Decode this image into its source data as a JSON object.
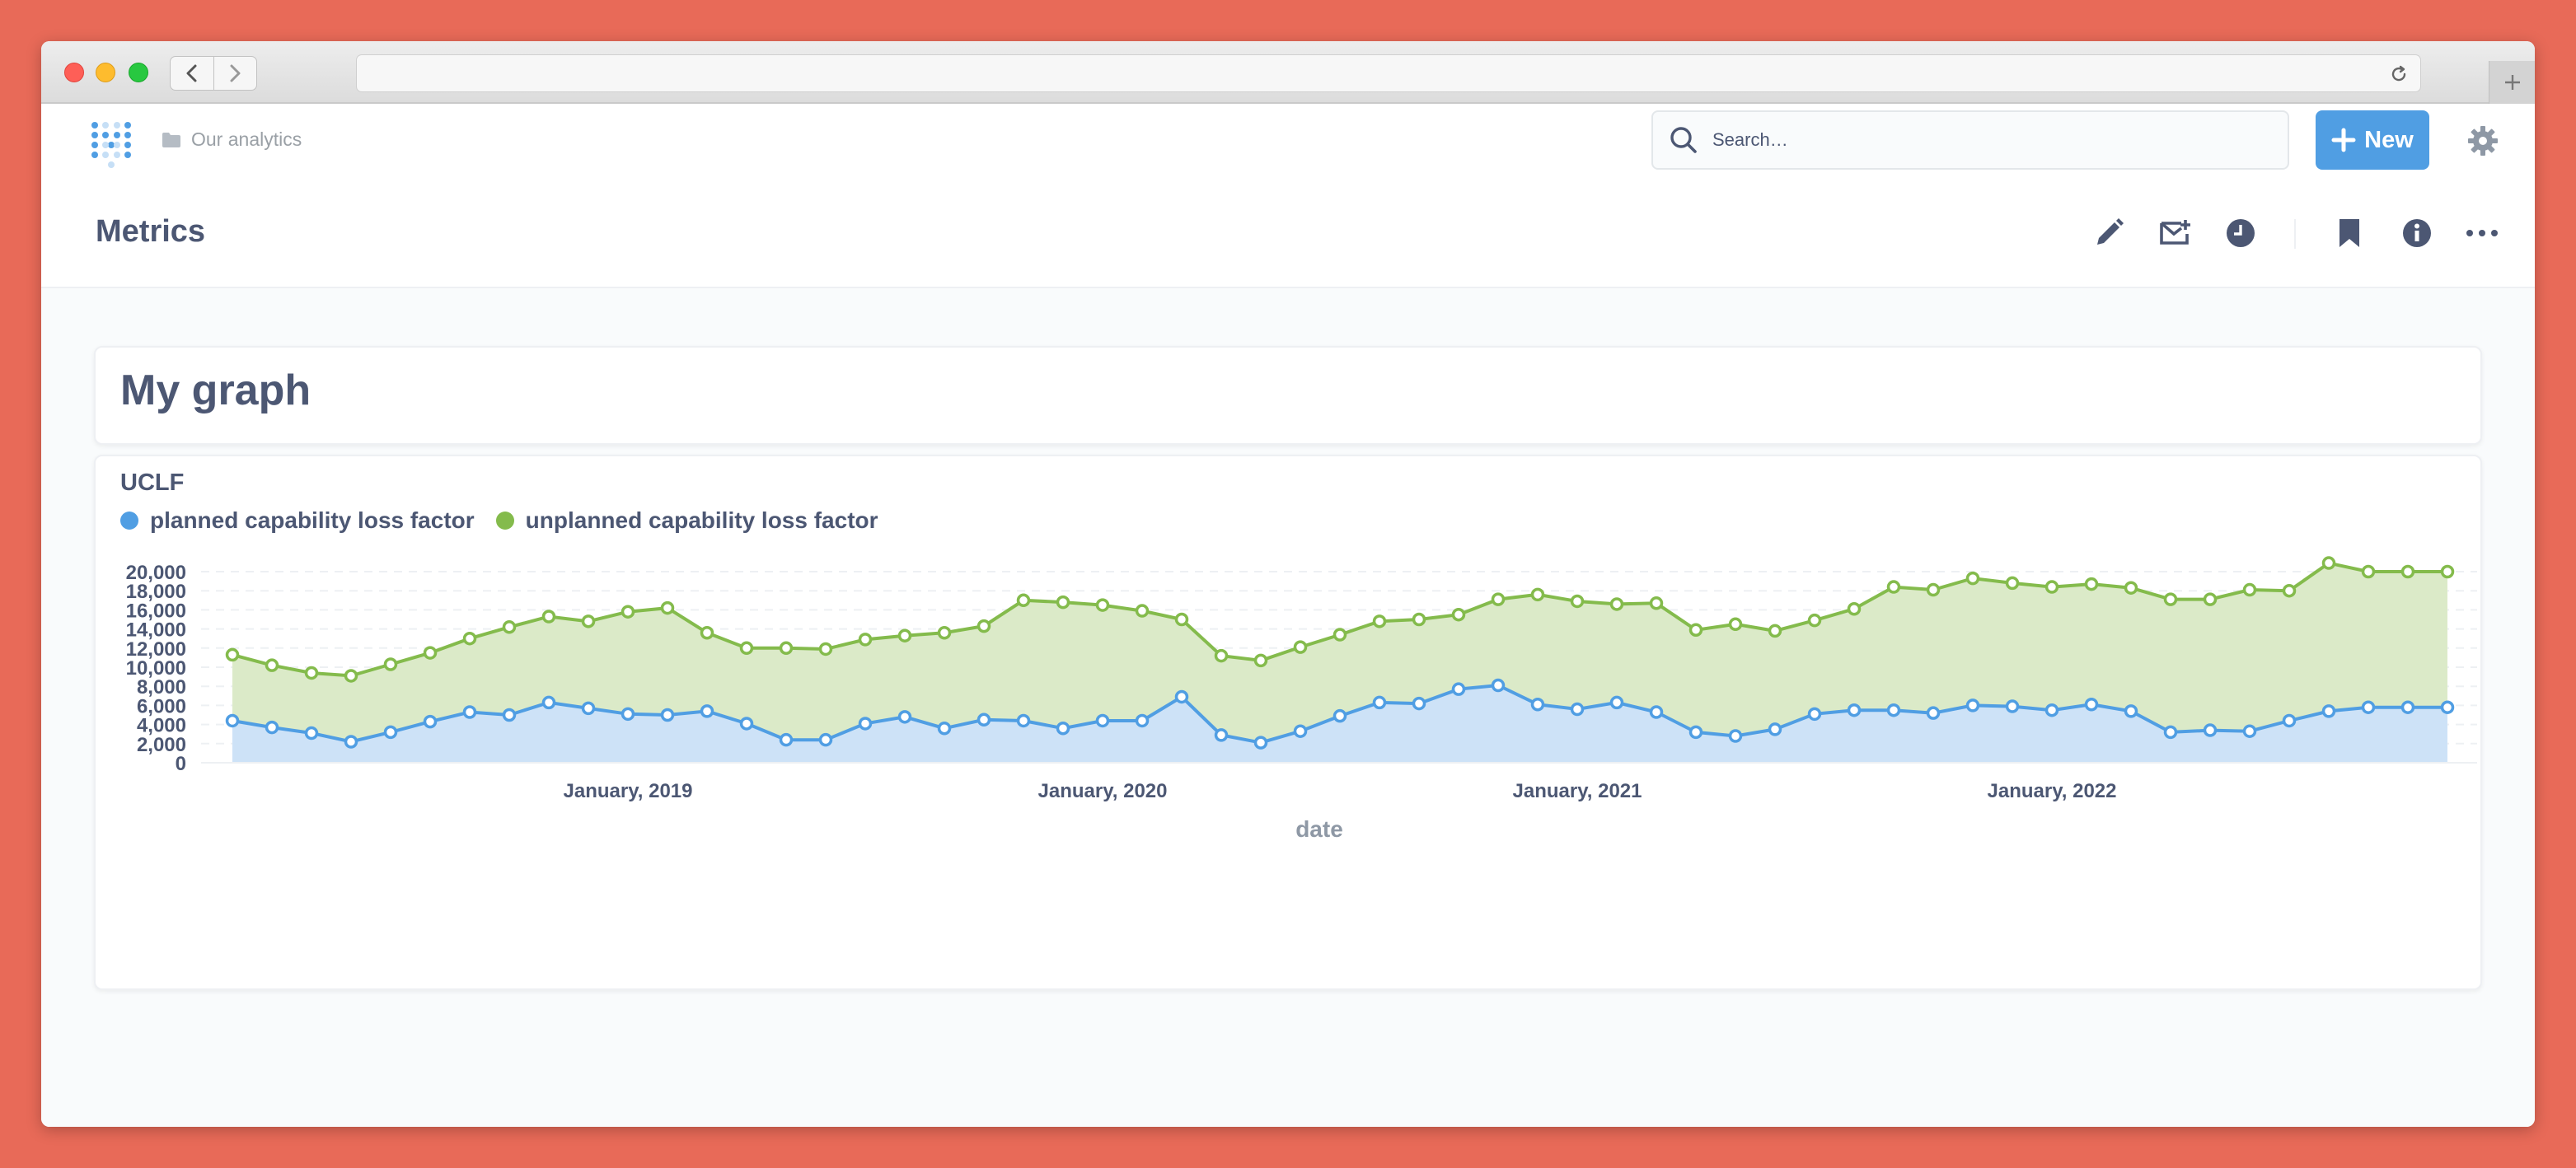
{
  "app": {
    "breadcrumb": "Our analytics",
    "search_placeholder": "Search…",
    "new_label": "New",
    "page_title": "Metrics",
    "graph_title": "My graph"
  },
  "icons": {
    "logo": "metabase-logo-icon",
    "folder": "folder-icon",
    "search": "search-icon",
    "plus": "plus-icon",
    "settings": "gear-icon",
    "edit": "pencil-icon",
    "subscribe": "mail-plus-icon",
    "history": "clock-icon",
    "bookmark": "bookmark-icon",
    "info": "info-icon",
    "more": "ellipsis-icon"
  },
  "colors": {
    "accent": "#509ee3",
    "planned": "#509ee3",
    "unplanned": "#84bb4c",
    "text": "#4c5773"
  },
  "chart_data": {
    "type": "area",
    "title": "UCLF",
    "xlabel": "date",
    "ylabel": "",
    "stacked": true,
    "x_tick_labels": [
      "January, 2019",
      "January, 2020",
      "January, 2021",
      "January, 2022"
    ],
    "y_ticks": [
      "0",
      "2,000",
      "4,000",
      "6,000",
      "8,000",
      "10,000",
      "12,000",
      "14,000",
      "16,000",
      "18,000",
      "20,000"
    ],
    "ylim": [
      0,
      20000
    ],
    "grid": "horizontal",
    "legend_position": "top-left",
    "x": [
      "2018-03",
      "2018-04",
      "2018-05",
      "2018-06",
      "2018-07",
      "2018-08",
      "2018-09",
      "2018-10",
      "2018-11",
      "2018-12",
      "2019-01",
      "2019-02",
      "2019-03",
      "2019-04",
      "2019-05",
      "2019-06",
      "2019-07",
      "2019-08",
      "2019-09",
      "2019-10",
      "2019-11",
      "2019-12",
      "2020-01",
      "2020-02",
      "2020-03",
      "2020-04",
      "2020-05",
      "2020-06",
      "2020-07",
      "2020-08",
      "2020-09",
      "2020-10",
      "2020-11",
      "2020-12",
      "2021-01",
      "2021-02",
      "2021-03",
      "2021-04",
      "2021-05",
      "2021-06",
      "2021-07",
      "2021-08",
      "2021-09",
      "2021-10",
      "2021-11",
      "2021-12",
      "2022-01",
      "2022-02",
      "2022-03",
      "2022-04",
      "2022-05",
      "2022-06",
      "2022-07",
      "2022-08",
      "2022-09",
      "2022-10",
      "2022-11"
    ],
    "series": [
      {
        "name": "planned capability loss factor",
        "color": "#509ee3",
        "values": [
          4400,
          3700,
          3100,
          2200,
          3200,
          4300,
          5300,
          5000,
          6300,
          5700,
          5100,
          5000,
          5400,
          4100,
          2400,
          2400,
          4100,
          4800,
          3600,
          4500,
          4400,
          3600,
          4400,
          4400,
          6900,
          2900,
          2100,
          3300,
          4900,
          6300,
          6200,
          7700,
          8100,
          6100,
          5600,
          6300,
          5300,
          3200,
          2800,
          3500,
          5100,
          5500,
          5500,
          5200,
          6000,
          5900,
          5500,
          6100,
          5400,
          3200,
          3400,
          3300,
          4400,
          5400,
          5800,
          5800,
          5800
        ]
      },
      {
        "name": "unplanned capability loss factor",
        "color": "#84bb4c",
        "values": [
          6900,
          6500,
          6300,
          6900,
          7100,
          7200,
          7700,
          9200,
          9000,
          9100,
          10700,
          11200,
          8200,
          7900,
          9600,
          9500,
          8800,
          8500,
          10000,
          9800,
          12600,
          13200,
          12100,
          11500,
          8100,
          8300,
          8600,
          8800,
          8500,
          8500,
          8800,
          7800,
          9000,
          11500,
          11300,
          10300,
          11400,
          10700,
          11700,
          10300,
          9800,
          10600,
          12900,
          12900,
          13300,
          12900,
          12900,
          12600,
          12900,
          13900,
          13700,
          14800,
          13600,
          15500,
          14200,
          14200,
          14200
        ]
      }
    ]
  }
}
